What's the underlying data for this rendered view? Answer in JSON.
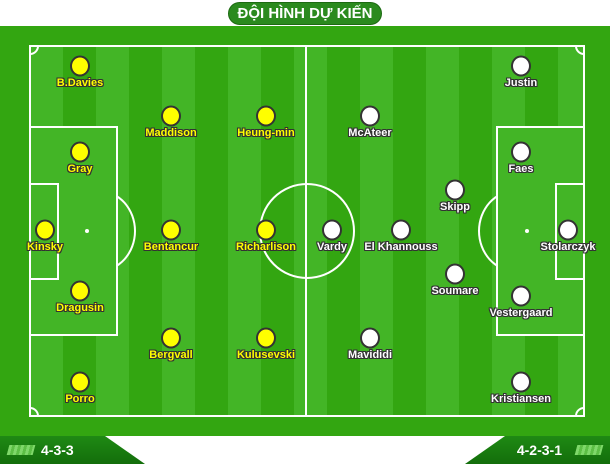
{
  "title": "ĐỘI HÌNH DỰ KIẾN",
  "colors": {
    "home": "#ffff00",
    "away": "#ffffff",
    "pitch_dark": "#33a611",
    "pitch_light": "#43b526"
  },
  "home": {
    "formation": "4-3-3",
    "players": [
      "B.Davies",
      "Maddison",
      "Heung-min",
      "Gray",
      "Kinsky",
      "Bentancur",
      "Richarlison",
      "Dragusin",
      "Bergvall",
      "Kulusevski",
      "Porro"
    ]
  },
  "away": {
    "formation": "4-2-3-1",
    "players": [
      "Justin",
      "McAteer",
      "Faes",
      "Skipp",
      "Vardy",
      "El Khannouss",
      "Stolarczyk",
      "Soumare",
      "Vestergaard",
      "Mavididi",
      "Kristiansen"
    ]
  }
}
